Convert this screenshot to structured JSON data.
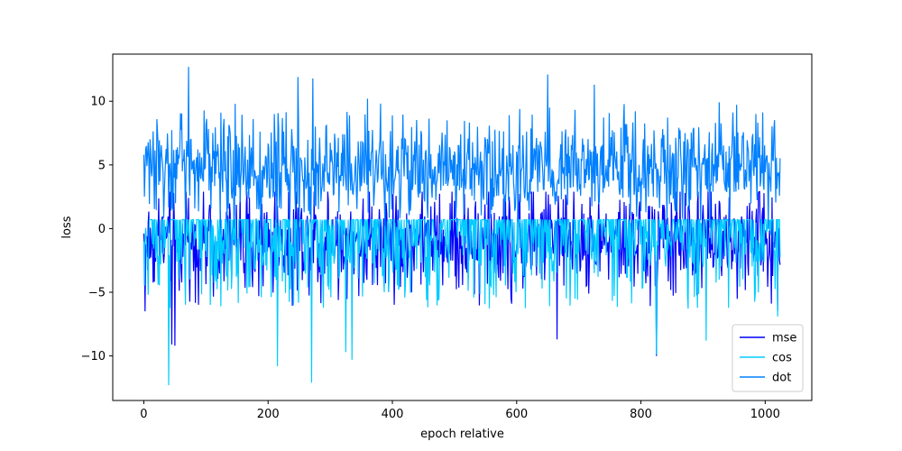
{
  "chart_data": {
    "type": "line",
    "title": "",
    "xlabel": "epoch relative",
    "ylabel": "loss",
    "xlim": [
      -50,
      1075
    ],
    "ylim": [
      -13.5,
      13.7
    ],
    "xticks": [
      0,
      200,
      400,
      600,
      800,
      1000
    ],
    "yticks": [
      -10,
      -5,
      0,
      5,
      10
    ],
    "grid": false,
    "legend_position": "lower-right",
    "n_points": 1025,
    "series": [
      {
        "name": "mse",
        "color": "#0000ff",
        "center": -1.0,
        "typical_range": [
          -3.5,
          1.6
        ],
        "min": -10.0,
        "max": 2.9,
        "notable_points": [
          {
            "x": 2,
            "y": -6.5
          },
          {
            "x": 45,
            "y": -9.1
          },
          {
            "x": 50,
            "y": -9.2
          },
          {
            "x": 665,
            "y": -8.7
          },
          {
            "x": 825,
            "y": -10.0
          },
          {
            "x": 1020,
            "y": -6.5
          }
        ]
      },
      {
        "name": "cos",
        "color": "#00ccff",
        "center": 0.7,
        "typical_range": [
          -3.5,
          0.7
        ],
        "min": -12.3,
        "max": 0.7,
        "notable_points": [
          {
            "x": 40,
            "y": -12.3
          },
          {
            "x": 215,
            "y": -10.8
          },
          {
            "x": 270,
            "y": -12.1
          },
          {
            "x": 325,
            "y": -9.7
          },
          {
            "x": 335,
            "y": -10.3
          },
          {
            "x": 825,
            "y": -9.9
          },
          {
            "x": 905,
            "y": -8.8
          },
          {
            "x": 1020,
            "y": -6.9
          }
        ]
      },
      {
        "name": "dot",
        "color": "#0080ff",
        "center": 4.8,
        "typical_range": [
          2.5,
          7.5
        ],
        "min": -2.5,
        "max": 12.7,
        "notable_points": [
          {
            "x": 72,
            "y": 12.7
          },
          {
            "x": 248,
            "y": 11.9
          },
          {
            "x": 272,
            "y": 11.8
          },
          {
            "x": 650,
            "y": 12.1
          },
          {
            "x": 725,
            "y": 11.3
          },
          {
            "x": 360,
            "y": 10.2
          },
          {
            "x": 985,
            "y": 9.0
          }
        ]
      }
    ]
  }
}
